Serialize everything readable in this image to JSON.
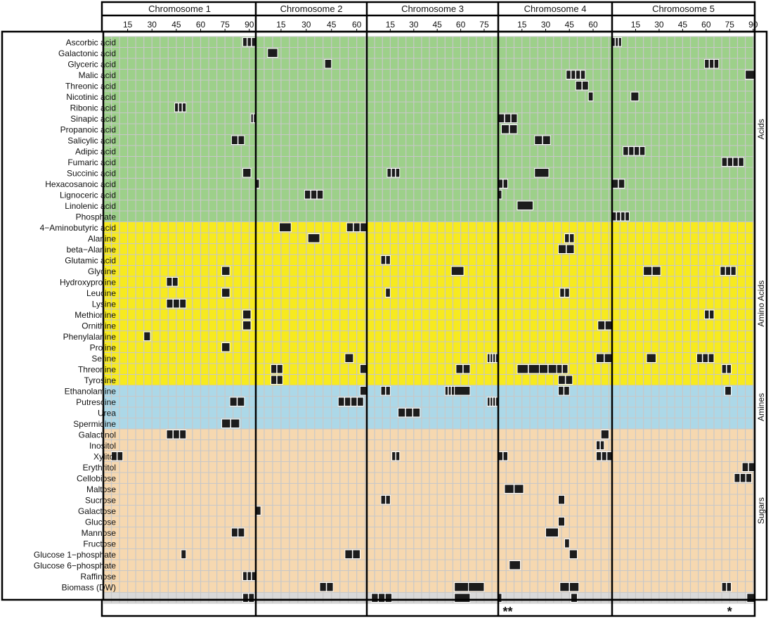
{
  "chart_data": {
    "type": "heatmap",
    "chromosomes": [
      {
        "name": "Chromosome 1",
        "length": 94,
        "ticks": [
          "15",
          "30",
          "45",
          "60",
          "75",
          "90"
        ]
      },
      {
        "name": "Chromosome 2",
        "length": 66,
        "ticks": [
          "15",
          "30",
          "45",
          "60"
        ]
      },
      {
        "name": "Chromosome 3",
        "length": 84,
        "ticks": [
          "15",
          "30",
          "45",
          "60",
          "75"
        ]
      },
      {
        "name": "Chromosome 4",
        "length": 72,
        "ticks": [
          "15",
          "30",
          "45",
          "60"
        ]
      },
      {
        "name": "Chromosome 5",
        "length": 91,
        "ticks": [
          "15",
          "30",
          "45",
          "60",
          "75",
          "90"
        ]
      }
    ],
    "groups": [
      {
        "name": "Acids",
        "color": "#9dd08a",
        "start": 0,
        "end": 17
      },
      {
        "name": "Amino Acids",
        "color": "#f7ea1f",
        "start": 17,
        "end": 32
      },
      {
        "name": "Amines",
        "color": "#acd8e8",
        "start": 32,
        "end": 36
      },
      {
        "name": "Sugars",
        "color": "#f6d8b0",
        "start": 36,
        "end": 51
      },
      {
        "name": "",
        "color": "#d9d9d9",
        "start": 51,
        "end": 52
      }
    ],
    "rows": [
      "Ascorbic acid",
      "Galactonic acid",
      "Glyceric acid",
      "Malic acid",
      "Threonic acid",
      "Nicotinic acid",
      "Ribonic acid",
      "Sinapic acid",
      "Propanoic acid",
      "Salicylic acid",
      "Adipic acid",
      "Fumaric acid",
      "Succinic acid",
      "Hexacosanoic acid",
      "Lignoceric acid",
      "Linolenic acid",
      "Phosphate",
      "4−Aminobutyric acid",
      "Alanine",
      "beta−Alanine",
      "Glutamic acid",
      "Glycine",
      "Hydroxyproline",
      "Leucine",
      "Lysine",
      "Methionine",
      "Ornithine",
      "Phenylalanine",
      "Proline",
      "Serine",
      "Threonine",
      "Tyrosine",
      "Ethanolamine",
      "Putrescine",
      "Urea",
      "Spermidine",
      "Galactinol",
      "Inositol",
      "Xylitol",
      "Erythritol",
      "Cellobiose",
      "Maltose",
      "Sucrose",
      "Galactose",
      "Glucose",
      "Mannose",
      "Fructose",
      "Glucose 1−phosphate",
      "Glucose 6−phosphate",
      "Raffinose",
      "Biomass (DW)"
    ],
    "qtl": [
      [
        0,
        1,
        86,
        94,
        3
      ],
      [
        0,
        5,
        0,
        6,
        3
      ],
      [
        1,
        2,
        7,
        13,
        1
      ],
      [
        2,
        2,
        41,
        45,
        1
      ],
      [
        2,
        5,
        59,
        68,
        3
      ],
      [
        3,
        4,
        43,
        55,
        4
      ],
      [
        3,
        5,
        85,
        91,
        1
      ],
      [
        4,
        4,
        49,
        57,
        2
      ],
      [
        5,
        4,
        57,
        60,
        1
      ],
      [
        5,
        5,
        12,
        17,
        1
      ],
      [
        6,
        1,
        44,
        51,
        3
      ],
      [
        7,
        1,
        91,
        98,
        2
      ],
      [
        7,
        4,
        0,
        12,
        3
      ],
      [
        8,
        4,
        2,
        12,
        2
      ],
      [
        9,
        1,
        79,
        87,
        2
      ],
      [
        9,
        4,
        23,
        33,
        2
      ],
      [
        10,
        5,
        7,
        21,
        4
      ],
      [
        11,
        5,
        70,
        84,
        4
      ],
      [
        12,
        1,
        86,
        91,
        1
      ],
      [
        12,
        3,
        13,
        21,
        3
      ],
      [
        12,
        4,
        23,
        32,
        1
      ],
      [
        13,
        1,
        94,
        98,
        1
      ],
      [
        13,
        4,
        0,
        6,
        2
      ],
      [
        13,
        5,
        0,
        8,
        2
      ],
      [
        14,
        2,
        29,
        40,
        3
      ],
      [
        14,
        4,
        0,
        1,
        1
      ],
      [
        15,
        4,
        12,
        22,
        1
      ],
      [
        16,
        5,
        0,
        11,
        4
      ],
      [
        17,
        2,
        14,
        21,
        1
      ],
      [
        17,
        2,
        54,
        66,
        3
      ],
      [
        18,
        2,
        31,
        38,
        1
      ],
      [
        18,
        4,
        42,
        48,
        2
      ],
      [
        19,
        4,
        38,
        48,
        2
      ],
      [
        20,
        3,
        9,
        15,
        2
      ],
      [
        21,
        1,
        73,
        78,
        1
      ],
      [
        21,
        3,
        54,
        62,
        1
      ],
      [
        21,
        5,
        20,
        31,
        2
      ],
      [
        21,
        5,
        69,
        79,
        3
      ],
      [
        22,
        1,
        39,
        46,
        2
      ],
      [
        23,
        1,
        73,
        78,
        1
      ],
      [
        23,
        3,
        12,
        15,
        1
      ],
      [
        23,
        4,
        39,
        45,
        2
      ],
      [
        24,
        1,
        39,
        51,
        3
      ],
      [
        25,
        1,
        86,
        91,
        1
      ],
      [
        25,
        5,
        59,
        65,
        2
      ],
      [
        26,
        1,
        86,
        91,
        1
      ],
      [
        26,
        4,
        63,
        72,
        2
      ],
      [
        27,
        1,
        25,
        29,
        1
      ],
      [
        28,
        1,
        73,
        78,
        1
      ],
      [
        29,
        2,
        53,
        58,
        1
      ],
      [
        29,
        3,
        77,
        91,
        4
      ],
      [
        29,
        4,
        62,
        72,
        2
      ],
      [
        29,
        5,
        22,
        28,
        1
      ],
      [
        29,
        5,
        54,
        65,
        3
      ],
      [
        30,
        2,
        9,
        16,
        2
      ],
      [
        30,
        2,
        62,
        66,
        1
      ],
      [
        30,
        3,
        57,
        66,
        2
      ],
      [
        30,
        4,
        12,
        26,
        2
      ],
      [
        30,
        4,
        26,
        37,
        2
      ],
      [
        30,
        4,
        37,
        44,
        2
      ],
      [
        30,
        5,
        70,
        76,
        2
      ],
      [
        31,
        2,
        9,
        16,
        2
      ],
      [
        31,
        4,
        38,
        47,
        2
      ],
      [
        32,
        2,
        62,
        66,
        1
      ],
      [
        32,
        3,
        9,
        15,
        2
      ],
      [
        32,
        3,
        50,
        56,
        3
      ],
      [
        32,
        3,
        56,
        66,
        1
      ],
      [
        32,
        4,
        38,
        45,
        2
      ],
      [
        32,
        5,
        72,
        76,
        1
      ],
      [
        33,
        1,
        78,
        87,
        2
      ],
      [
        33,
        2,
        49,
        64,
        4
      ],
      [
        33,
        3,
        77,
        91,
        4
      ],
      [
        34,
        3,
        20,
        34,
        3
      ],
      [
        35,
        1,
        73,
        84,
        2
      ],
      [
        36,
        1,
        39,
        51,
        3
      ],
      [
        36,
        4,
        65,
        70,
        1
      ],
      [
        37,
        4,
        62,
        67,
        2
      ],
      [
        38,
        1,
        5,
        12,
        2
      ],
      [
        38,
        3,
        16,
        21,
        2
      ],
      [
        38,
        4,
        0,
        6,
        2
      ],
      [
        38,
        4,
        62,
        72,
        3
      ],
      [
        39,
        5,
        83,
        94,
        2
      ],
      [
        40,
        5,
        78,
        89,
        3
      ],
      [
        41,
        4,
        4,
        16,
        2
      ],
      [
        42,
        3,
        9,
        15,
        2
      ],
      [
        42,
        4,
        38,
        42,
        1
      ],
      [
        43,
        2,
        0,
        3,
        1
      ],
      [
        44,
        4,
        38,
        42,
        1
      ],
      [
        45,
        1,
        79,
        87,
        2
      ],
      [
        45,
        4,
        30,
        38,
        1
      ],
      [
        46,
        4,
        42,
        45,
        1
      ],
      [
        47,
        1,
        48,
        51,
        1
      ],
      [
        47,
        2,
        53,
        62,
        2
      ],
      [
        47,
        4,
        45,
        50,
        1
      ],
      [
        48,
        4,
        7,
        14,
        1
      ],
      [
        49,
        1,
        86,
        98,
        3
      ],
      [
        50,
        2,
        38,
        46,
        2
      ],
      [
        50,
        3,
        56,
        65,
        1
      ],
      [
        50,
        3,
        65,
        75,
        1
      ],
      [
        50,
        4,
        39,
        51,
        2
      ],
      [
        50,
        5,
        70,
        76,
        2
      ],
      [
        51,
        1,
        86,
        93,
        2
      ],
      [
        51,
        3,
        3,
        16,
        3
      ],
      [
        51,
        3,
        56,
        66,
        1
      ],
      [
        51,
        4,
        0,
        2,
        1
      ],
      [
        51,
        4,
        46,
        50,
        1
      ],
      [
        51,
        5,
        86,
        91,
        1
      ]
    ],
    "annotations": [
      {
        "chromosome": 4,
        "position": 6,
        "text": "**"
      },
      {
        "chromosome": 5,
        "position": 75,
        "text": "*"
      }
    ]
  }
}
